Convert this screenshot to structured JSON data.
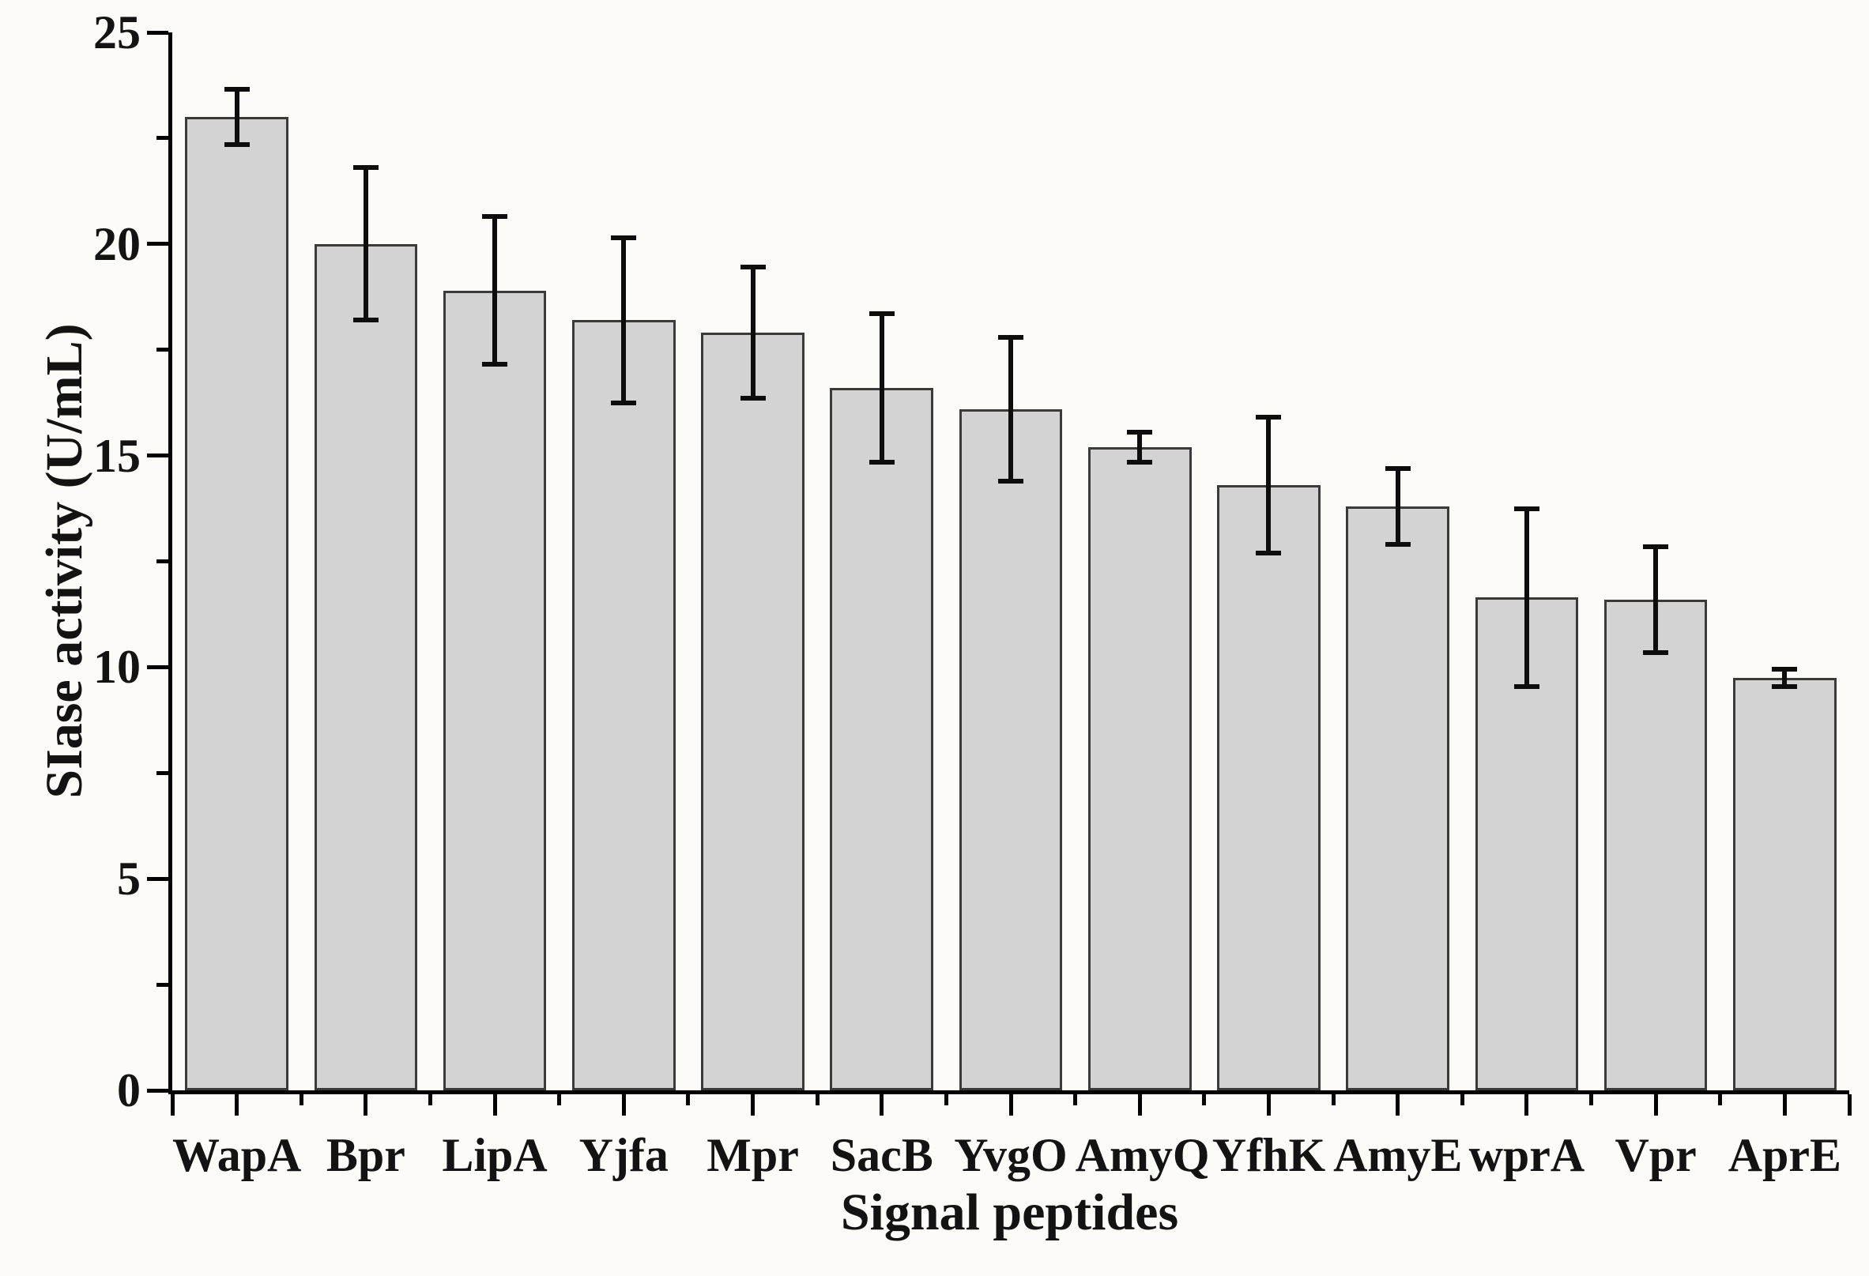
{
  "figure": {
    "background": "#fcfbf8",
    "axis_color": "#000000",
    "text_color": "#131313"
  },
  "chart_data": {
    "type": "bar",
    "title": "",
    "xlabel": "Signal peptides",
    "ylabel": "SIase activity (U/mL)",
    "categories": [
      "WapA",
      "Bpr",
      "LipA",
      "Yjfa",
      "Mpr",
      "SacB",
      "YvgO",
      "AmyQ",
      "YfhK",
      "AmyE",
      "wprA",
      "Vpr",
      "AprE"
    ],
    "values": [
      23.0,
      20.0,
      18.9,
      18.2,
      17.9,
      16.6,
      16.1,
      15.2,
      14.3,
      13.8,
      11.65,
      11.6,
      9.75
    ],
    "errors": [
      0.65,
      1.8,
      1.75,
      1.95,
      1.55,
      1.75,
      1.7,
      0.35,
      1.6,
      0.9,
      2.1,
      1.25,
      0.2
    ],
    "error_style": "plus-minus caps",
    "ylim": [
      0,
      25
    ],
    "ytick_major": [
      0,
      5,
      10,
      15,
      20,
      25
    ],
    "ytick_minor": [
      2.5,
      7.5,
      12.5,
      17.5,
      22.5
    ],
    "grid": false,
    "legend_position": "none",
    "bar_fill": "#d3d3d3",
    "bar_border": "#3a3a3a",
    "error_color": "#0d0d0d"
  }
}
